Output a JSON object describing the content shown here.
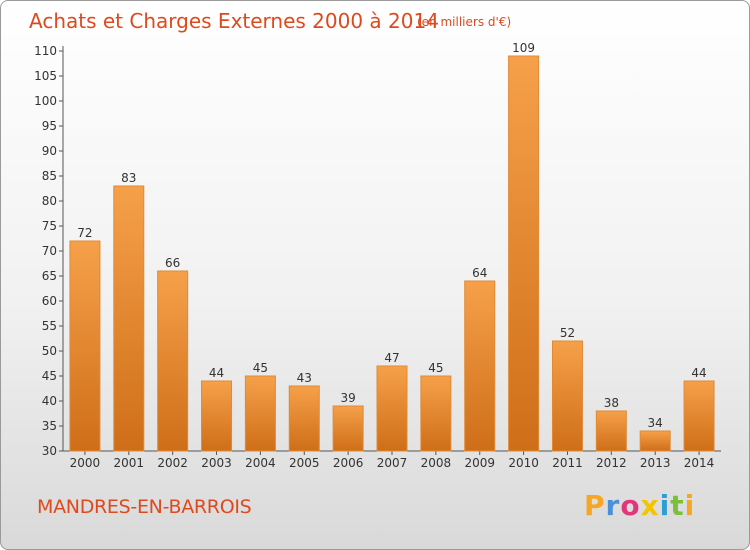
{
  "chart_data": {
    "type": "bar",
    "title": "Achats et Charges Externes 2000 à 2014",
    "subtitle": "(en milliers d'€)",
    "categories": [
      "2000",
      "2001",
      "2002",
      "2003",
      "2004",
      "2005",
      "2006",
      "2007",
      "2008",
      "2009",
      "2010",
      "2011",
      "2012",
      "2013",
      "2014"
    ],
    "values": [
      72,
      83,
      66,
      44,
      45,
      43,
      39,
      47,
      45,
      64,
      109,
      52,
      38,
      34,
      44
    ],
    "ylim": [
      30,
      110
    ],
    "yticks": [
      "30",
      "35",
      "40",
      "45",
      "50",
      "55",
      "60",
      "65",
      "70",
      "75",
      "80",
      "85",
      "90",
      "95",
      "100",
      "105",
      "110"
    ],
    "grid": false,
    "bar_color": "#f0963c",
    "bar_color_dark": "#d9741e"
  },
  "footer": {
    "commune": "MANDRES-EN-BARROIS",
    "logo_text": "Proxiti",
    "logo_colors": [
      "#f5a623",
      "#4a90d9",
      "#e2367a",
      "#f5c400",
      "#2a9fd6",
      "#7cbf3a",
      "#f5a623"
    ]
  }
}
